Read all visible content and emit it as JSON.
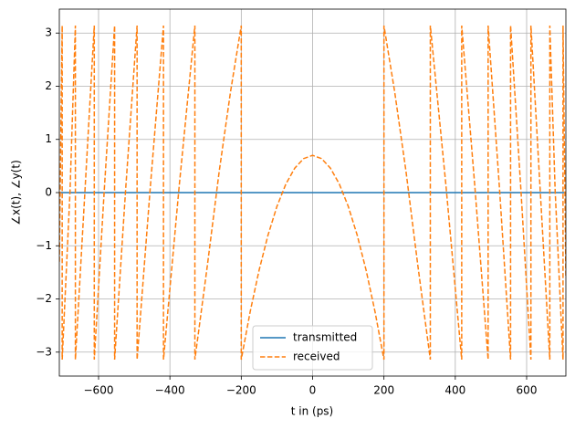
{
  "chart_data": {
    "type": "line",
    "xlabel": "t in (ps)",
    "ylabel": "∠x(t), ∠y(t)",
    "xlim": [
      -710,
      710
    ],
    "ylim": [
      -3.45,
      3.45
    ],
    "xticks": [
      {
        "value": -600,
        "label": "−600"
      },
      {
        "value": -400,
        "label": "−400"
      },
      {
        "value": -200,
        "label": "−200"
      },
      0,
      200,
      400,
      600
    ],
    "yticks": [
      {
        "value": -3,
        "label": "−3"
      },
      {
        "value": -2,
        "label": "−2"
      },
      {
        "value": -1,
        "label": "−1"
      },
      0,
      1,
      2,
      3
    ],
    "grid": true,
    "legend": "lower center",
    "series": [
      {
        "name": "transmitted",
        "color": "#1f77b4",
        "linestyle": "solid",
        "x": [
          -710,
          710
        ],
        "values": [
          0,
          0
        ]
      },
      {
        "name": "received",
        "color": "#ff7f0e",
        "linestyle": "dashed",
        "x": [
          -710,
          -702,
          -702,
          -680,
          -665,
          -665,
          -638,
          -612,
          -612,
          -584,
          -555,
          -555,
          -524,
          -492,
          -492,
          -455,
          -418,
          -418,
          -374,
          -330,
          -330,
          -295,
          -262,
          -230,
          -200,
          -200,
          -175,
          -150,
          -125,
          -100,
          -75,
          -50,
          -25,
          0,
          25,
          50,
          75,
          100,
          125,
          150,
          175,
          200,
          200,
          230,
          262,
          295,
          330,
          330,
          374,
          418,
          418,
          455,
          492,
          492,
          524,
          555,
          555,
          584,
          612,
          612,
          638,
          665,
          665,
          680,
          702,
          702,
          710
        ],
        "values": [
          -1.3,
          3.14,
          -3.14,
          0.03,
          3.14,
          -3.14,
          0.05,
          3.14,
          -3.14,
          0.05,
          3.14,
          -3.14,
          0.07,
          3.14,
          -3.14,
          0.1,
          3.14,
          -3.14,
          0.12,
          3.14,
          -3.14,
          -1.37,
          0.39,
          1.9,
          3.14,
          -3.14,
          -2.24,
          -1.46,
          -0.8,
          -0.26,
          0.16,
          0.46,
          0.64,
          0.7,
          0.64,
          0.46,
          0.16,
          -0.26,
          -0.8,
          -1.46,
          -2.24,
          -3.14,
          3.14,
          1.9,
          0.39,
          -1.37,
          -3.14,
          3.14,
          0.12,
          -3.14,
          3.14,
          0.1,
          -3.14,
          3.14,
          0.07,
          -3.14,
          3.14,
          0.05,
          -3.14,
          3.14,
          0.05,
          -3.14,
          3.14,
          0.03,
          -3.14,
          3.14,
          -1.6
        ]
      }
    ]
  }
}
